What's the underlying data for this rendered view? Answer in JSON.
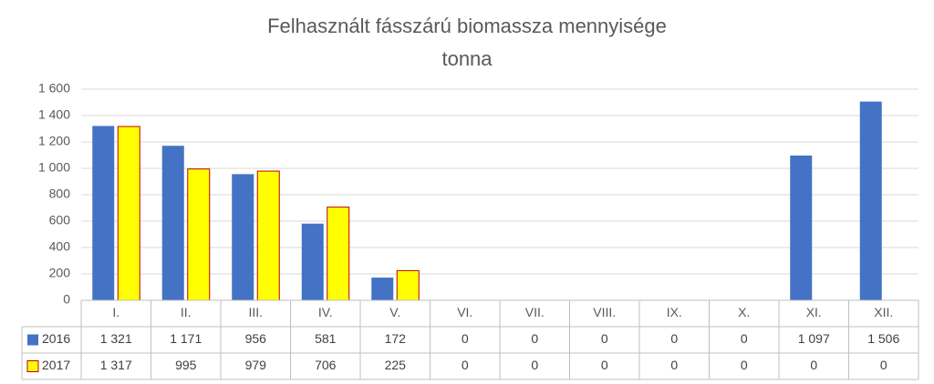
{
  "chart_data": {
    "type": "bar",
    "title": "Felhasznált fásszárú biomassza mennyisége",
    "subtitle": "tonna",
    "categories": [
      "I.",
      "II.",
      "III.",
      "IV.",
      "V.",
      "VI.",
      "VII.",
      "VIII.",
      "IX.",
      "X.",
      "XI.",
      "XII."
    ],
    "series": [
      {
        "name": "2016",
        "color": "#4472C4",
        "values": [
          1321,
          1171,
          956,
          581,
          172,
          0,
          0,
          0,
          0,
          0,
          1097,
          1506
        ],
        "labels": [
          "1 321",
          "1 171",
          "956",
          "581",
          "172",
          "0",
          "0",
          "0",
          "0",
          "0",
          "1 097",
          "1 506"
        ]
      },
      {
        "name": "2017",
        "color": "#FFFF00",
        "border_color": "#C00000",
        "values": [
          1317,
          995,
          979,
          706,
          225,
          0,
          0,
          0,
          0,
          0,
          0,
          0
        ],
        "labels": [
          "1 317",
          "995",
          "979",
          "706",
          "225",
          "0",
          "0",
          "0",
          "0",
          "0",
          "0",
          "0"
        ]
      }
    ],
    "ylim": [
      0,
      1600
    ],
    "yticks": [
      0,
      200,
      400,
      600,
      800,
      1000,
      1200,
      1400,
      1600
    ],
    "ytick_labels": [
      "0",
      "200",
      "400",
      "600",
      "800",
      "1 000",
      "1 200",
      "1 400",
      "1 600"
    ],
    "grid": true,
    "legend": "data-table"
  }
}
